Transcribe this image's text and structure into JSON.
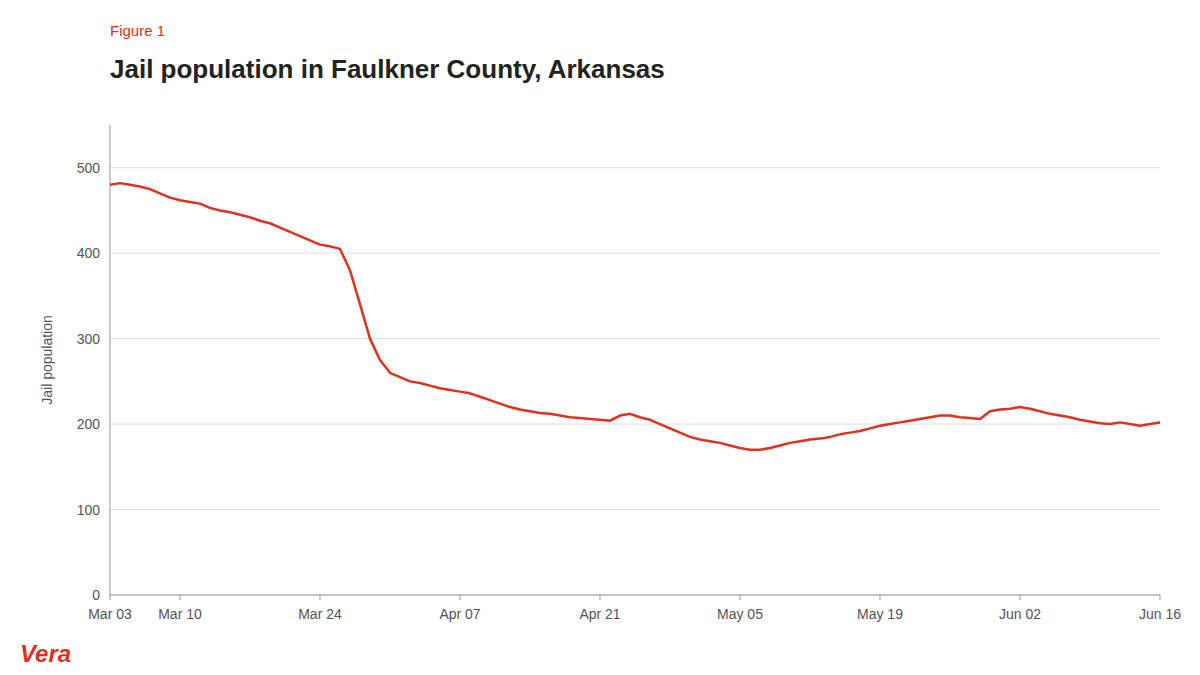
{
  "chart_data": {
    "type": "line",
    "title": "Jail population in Faulkner County, Arkansas",
    "annotations": [
      "Figure 1",
      "Vera"
    ],
    "ylabel": "Jail population",
    "color": "#e03020",
    "grid": true,
    "xlim": [
      0,
      105
    ],
    "xticks": [
      {
        "value": 0,
        "label": "Mar 03"
      },
      {
        "value": 7,
        "label": "Mar 10"
      },
      {
        "value": 21,
        "label": "Mar 24"
      },
      {
        "value": 35,
        "label": "Apr 07"
      },
      {
        "value": 49,
        "label": "Apr 21"
      },
      {
        "value": 63,
        "label": "May 05"
      },
      {
        "value": 77,
        "label": "May 19"
      },
      {
        "value": 91,
        "label": "Jun 02"
      },
      {
        "value": 105,
        "label": "Jun 16"
      }
    ],
    "ylim": [
      0,
      550
    ],
    "yticks": [
      0,
      100,
      200,
      300,
      400,
      500
    ],
    "x": [
      0,
      1,
      2,
      3,
      4,
      5,
      6,
      7,
      8,
      9,
      10,
      11,
      12,
      13,
      14,
      15,
      16,
      17,
      18,
      19,
      20,
      21,
      22,
      23,
      24,
      25,
      26,
      27,
      28,
      29,
      30,
      31,
      32,
      33,
      34,
      35,
      36,
      37,
      38,
      39,
      40,
      41,
      42,
      43,
      44,
      45,
      46,
      47,
      48,
      49,
      50,
      51,
      52,
      53,
      54,
      55,
      56,
      57,
      58,
      59,
      60,
      61,
      62,
      63,
      64,
      65,
      66,
      67,
      68,
      69,
      70,
      71,
      72,
      73,
      74,
      75,
      76,
      77,
      78,
      79,
      80,
      81,
      82,
      83,
      84,
      85,
      86,
      87,
      88,
      89,
      90,
      91,
      92,
      93,
      94,
      95,
      96,
      97,
      98,
      99,
      100,
      101,
      102,
      103,
      104,
      105
    ],
    "values": [
      480,
      482,
      480,
      478,
      475,
      470,
      465,
      462,
      460,
      458,
      453,
      450,
      448,
      445,
      442,
      438,
      435,
      430,
      425,
      420,
      415,
      410,
      408,
      405,
      380,
      340,
      300,
      275,
      260,
      255,
      250,
      248,
      245,
      242,
      240,
      238,
      236,
      232,
      228,
      224,
      220,
      217,
      215,
      213,
      212,
      210,
      208,
      207,
      206,
      205,
      204,
      210,
      212,
      208,
      205,
      200,
      195,
      190,
      185,
      182,
      180,
      178,
      175,
      172,
      170,
      170,
      172,
      175,
      178,
      180,
      182,
      183,
      185,
      188,
      190,
      192,
      195,
      198,
      200,
      202,
      204,
      206,
      208,
      210,
      210,
      208,
      207,
      206,
      215,
      217,
      218,
      220,
      218,
      215,
      212,
      210,
      208,
      205,
      203,
      201,
      200,
      202,
      200,
      198,
      200,
      202
    ]
  }
}
